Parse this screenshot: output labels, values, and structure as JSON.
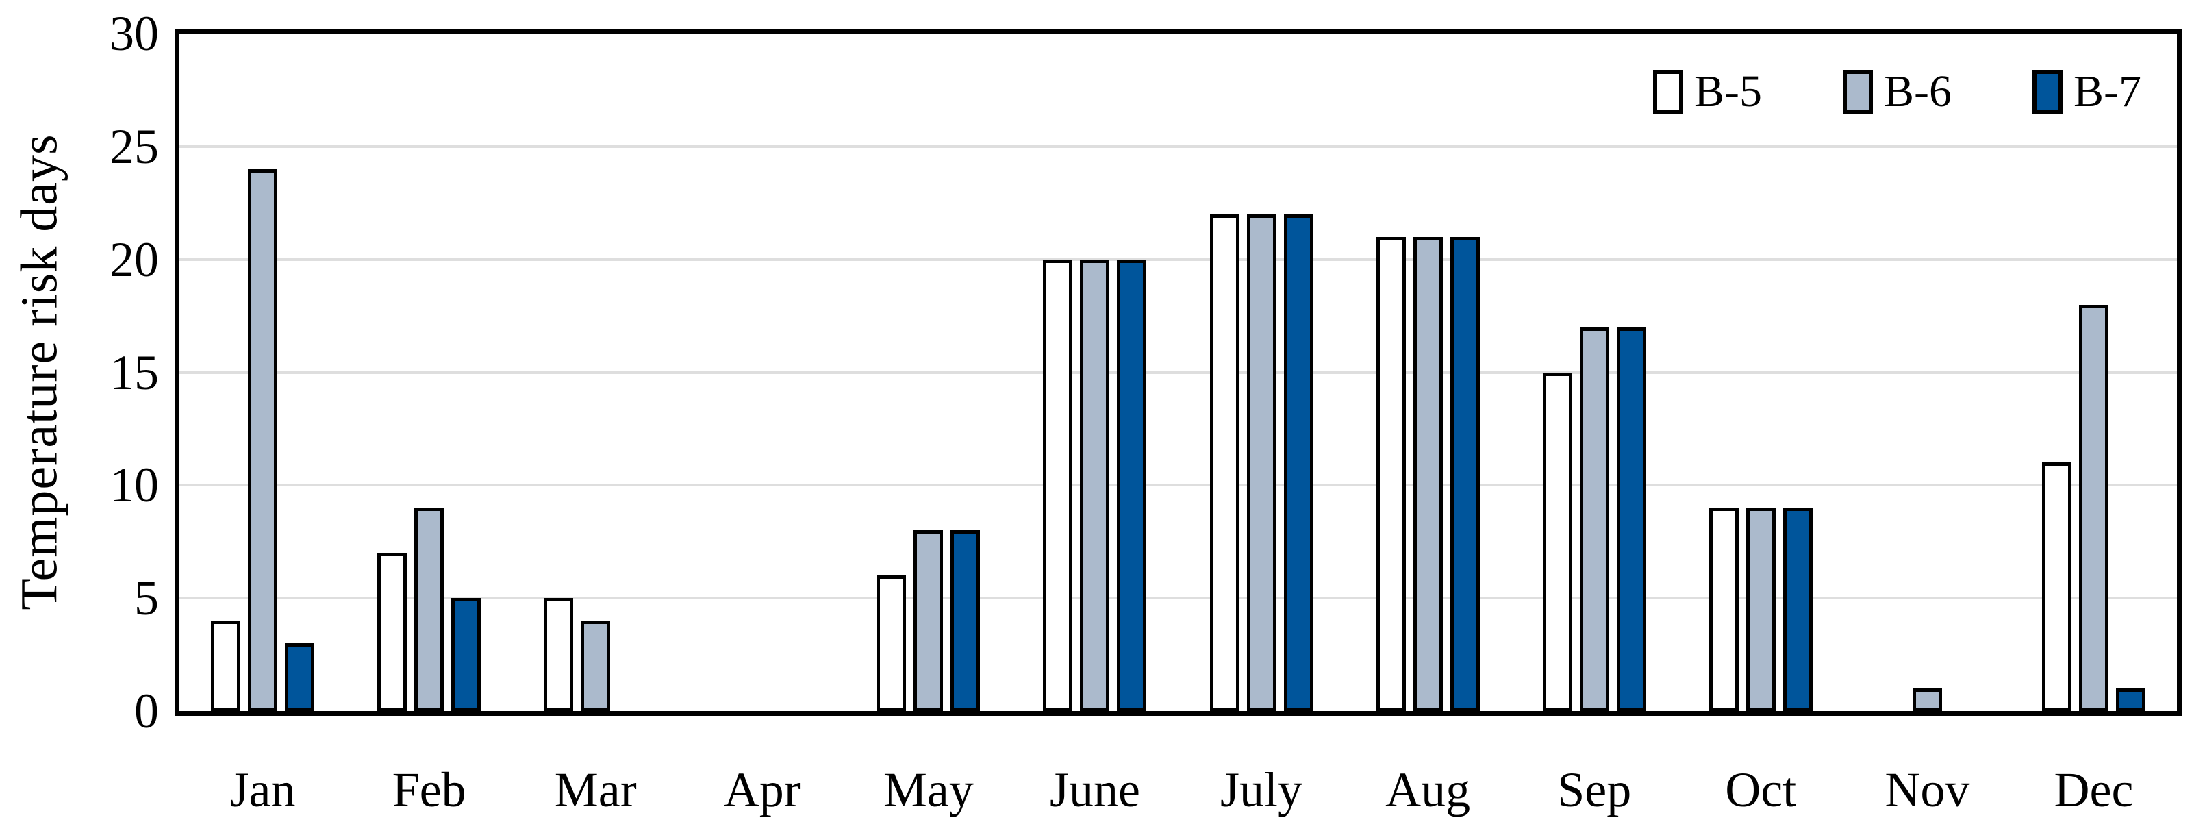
{
  "chart_data": {
    "type": "bar",
    "title": "",
    "xlabel": "",
    "ylabel": "Temperature risk days",
    "categories": [
      "Jan",
      "Feb",
      "Mar",
      "Apr",
      "May",
      "June",
      "July",
      "Aug",
      "Sep",
      "Oct",
      "Nov",
      "Dec"
    ],
    "series": [
      {
        "name": "B-5",
        "color": "#FFFFFF",
        "values": [
          4,
          7,
          5,
          0,
          6,
          20,
          22,
          21,
          15,
          9,
          0,
          11
        ]
      },
      {
        "name": "B-6",
        "color": "#ABBACC",
        "values": [
          24,
          9,
          4,
          0,
          8,
          20,
          22,
          21,
          17,
          9,
          1,
          18
        ]
      },
      {
        "name": "B-7",
        "color": "#00559B",
        "values": [
          3,
          5,
          0,
          0,
          8,
          20,
          22,
          21,
          17,
          9,
          0,
          1
        ]
      }
    ],
    "ylim": [
      0,
      30
    ],
    "yticks": [
      0,
      5,
      10,
      15,
      20,
      25,
      30
    ],
    "grid": true,
    "legend_position": "top-right",
    "colors": {
      "bar_border": "#000000",
      "plot_border": "#000000",
      "gridline": "#DEDEDE",
      "background": "#FFFFFF",
      "text": "#000000"
    }
  }
}
